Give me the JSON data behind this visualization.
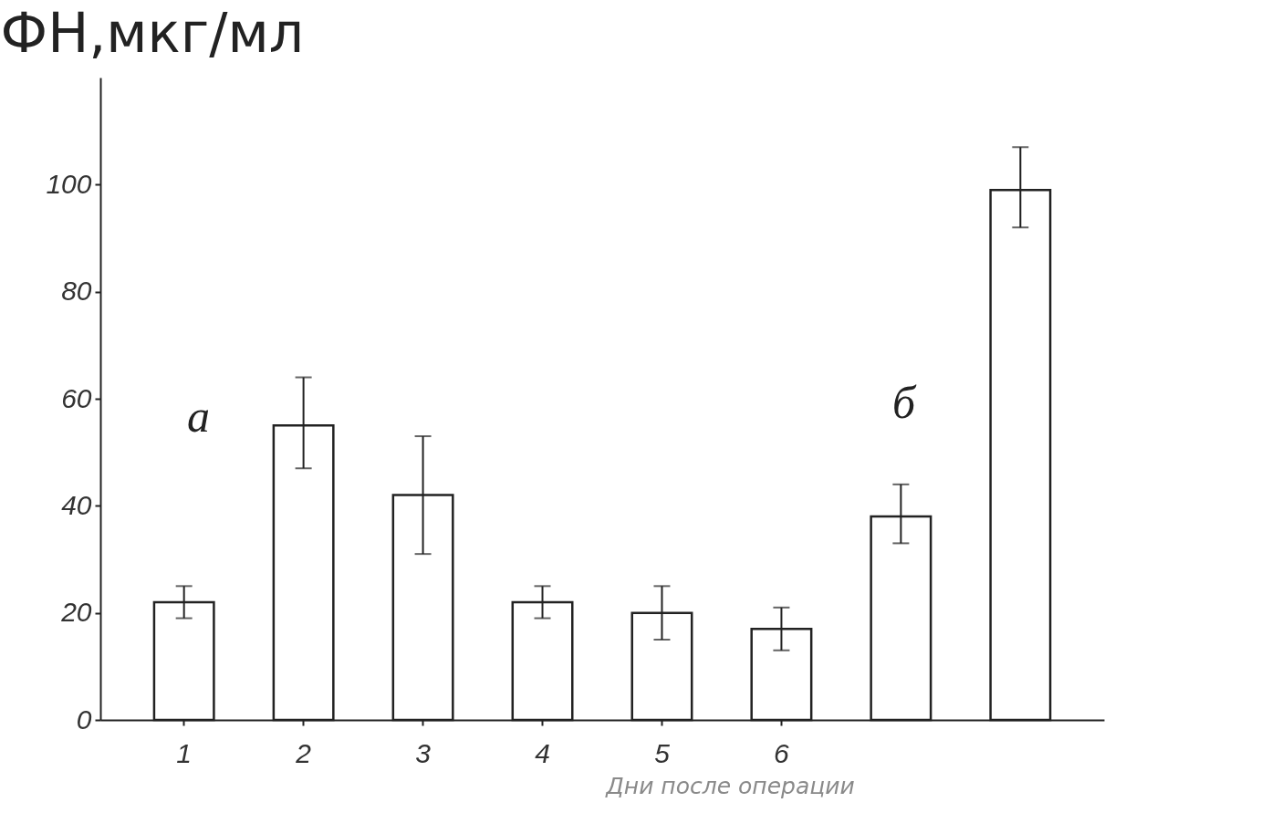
{
  "chart_data": {
    "type": "bar",
    "ylabel": "ФН,мкг/мл",
    "xlabel": "Дни после операции",
    "annotations": [
      "а",
      "б"
    ],
    "categories": [
      "1",
      "2",
      "3",
      "4",
      "5",
      "6",
      null,
      null
    ],
    "values": [
      22,
      55,
      42,
      22,
      20,
      17,
      38,
      99
    ],
    "errors": [
      [
        19,
        25
      ],
      [
        47,
        64
      ],
      [
        31,
        53
      ],
      [
        19,
        25
      ],
      [
        15,
        25
      ],
      [
        13,
        21
      ],
      [
        33,
        44
      ],
      [
        92,
        107
      ]
    ],
    "color": "#ffffff",
    "ylim": [
      0,
      120
    ],
    "yticks": [
      0,
      20,
      40,
      60,
      80,
      100
    ]
  }
}
